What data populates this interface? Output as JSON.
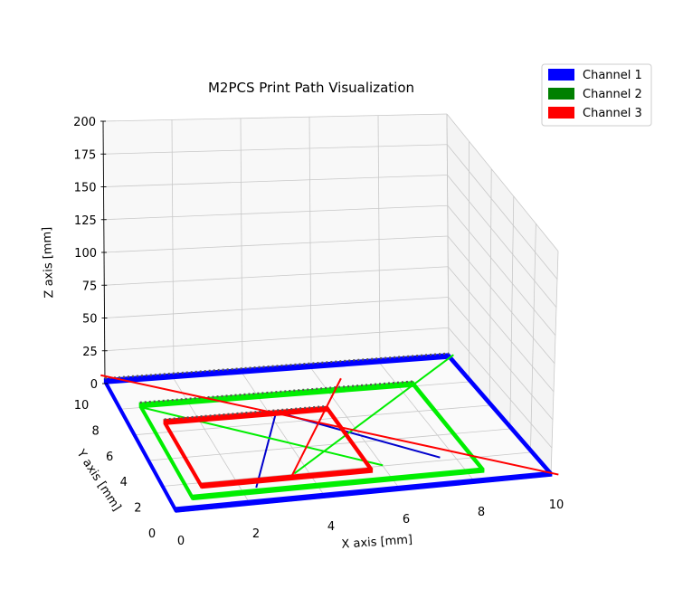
{
  "chart_data": {
    "type": "line3d",
    "title": "M2PCS Print Path Visualization",
    "xlabel": "X axis [mm]",
    "ylabel": "Y axis [mm]",
    "zlabel": "Z axis [mm]",
    "xlim": [
      0,
      10
    ],
    "ylim": [
      0,
      10
    ],
    "zlim": [
      0,
      200
    ],
    "x_ticks": [
      "0",
      "2",
      "4",
      "6",
      "8",
      "10"
    ],
    "y_ticks": [
      "0",
      "2",
      "4",
      "6",
      "8",
      "10"
    ],
    "z_ticks": [
      "0",
      "25",
      "50",
      "75",
      "100",
      "125",
      "150",
      "175",
      "200"
    ],
    "grid": true,
    "legend_position": "top-right",
    "layers": {
      "count": 10,
      "z_start": 0,
      "z_step": 0.4
    },
    "series": [
      {
        "name": "Channel 1",
        "color": "#0000ff",
        "travel_color": "#0000cc",
        "rect": {
          "x0": 0,
          "y0": 0,
          "x1": 10,
          "y1": 10
        },
        "travel": [
          [
            [
              2.4,
              1.2
            ],
            [
              4.2,
              6.8
            ]
          ],
          [
            [
              4.2,
              6.8
            ],
            [
              7.6,
              2.2
            ]
          ]
        ]
      },
      {
        "name": "Channel 2",
        "color": "#008000",
        "draw_color": "#00ee00",
        "rect": {
          "x0": 0.6,
          "y0": 0.8,
          "x1": 8.4,
          "y1": 8.0
        },
        "travel": [
          [
            [
              0.6,
              8.0
            ],
            [
              6.0,
              2.0
            ]
          ],
          [
            [
              3.6,
              2.0
            ],
            [
              10.2,
              10.2
            ]
          ]
        ]
      },
      {
        "name": "Channel 3",
        "color": "#ff0000",
        "draw_color": "#ff0000",
        "rect": {
          "x0": 1.0,
          "y0": 1.6,
          "x1": 5.6,
          "y1": 6.6
        },
        "travel": [
          [
            [
              3.4,
              1.6
            ],
            [
              6.6,
              9.0
            ]
          ],
          [
            [
              0.0,
              10.6
            ],
            [
              10.2,
              0.0
            ]
          ]
        ]
      }
    ]
  }
}
